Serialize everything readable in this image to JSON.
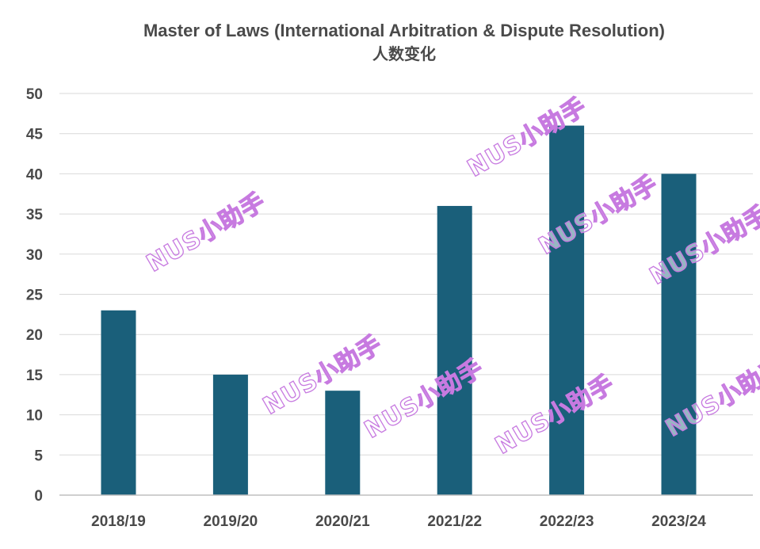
{
  "chart_data": {
    "type": "bar",
    "title": "Master of Laws (International Arbitration & Dispute Resolution)",
    "subtitle": "人数变化",
    "categories": [
      "2018/19",
      "2019/20",
      "2020/21",
      "2021/22",
      "2022/23",
      "2023/24"
    ],
    "values": [
      23,
      15,
      13,
      36,
      46,
      40
    ],
    "ylim": [
      0,
      50
    ],
    "yticks": [
      "0",
      "5",
      "10",
      "15",
      "20",
      "25",
      "30",
      "35",
      "40",
      "45",
      "50"
    ],
    "grid": true,
    "legend": "none"
  },
  "colors": {
    "bar": "#1a5f7a",
    "grid": "#d9d9d9",
    "axis": "#bfbfbf",
    "watermark_outline": "#c77ae0"
  },
  "watermark": {
    "text": "NUS小助手"
  }
}
